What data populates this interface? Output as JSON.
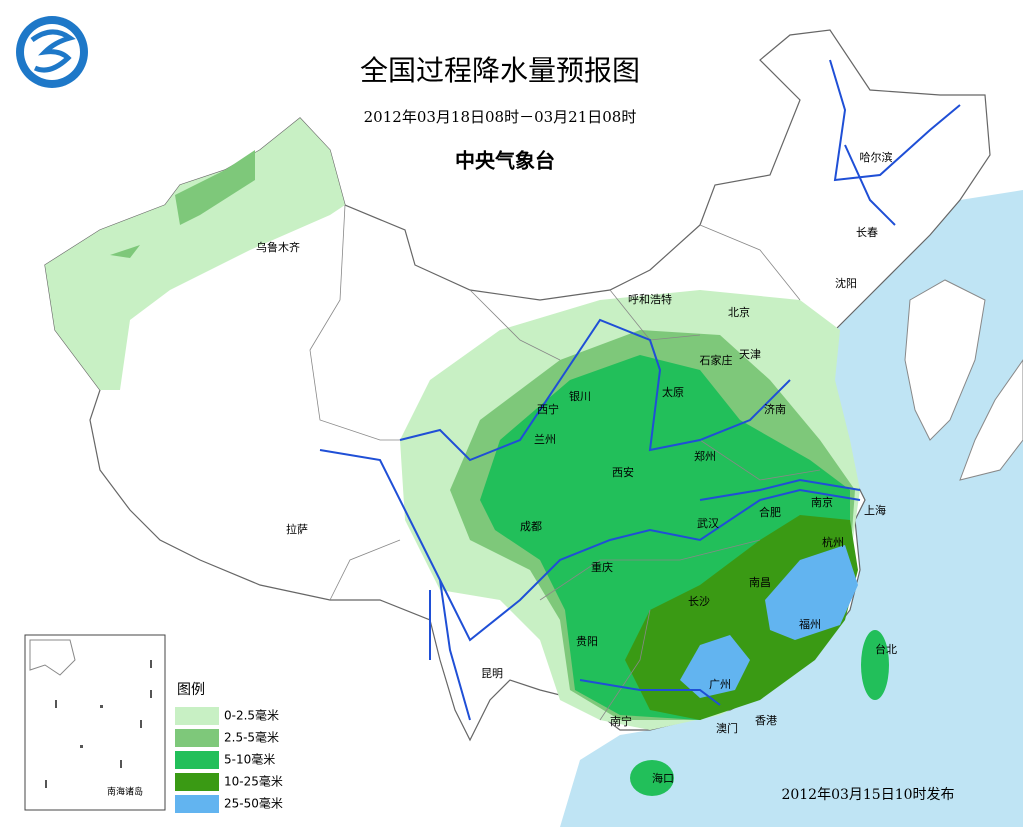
{
  "header": {
    "title": "全国过程降水量预报图",
    "subtitle": "2012年03月18日08时－03月21日08时",
    "agency": "中央气象台"
  },
  "cities": [
    "乌鲁木齐",
    "哈尔滨",
    "长春",
    "沈阳",
    "呼和浩特",
    "北京",
    "天津",
    "石家庄",
    "太原",
    "济南",
    "西宁",
    "银川",
    "兰州",
    "郑州",
    "西安",
    "南京",
    "上海",
    "合肥",
    "成都",
    "武汉",
    "杭州",
    "重庆",
    "南昌",
    "长沙",
    "福州",
    "拉萨",
    "贵阳",
    "昆明",
    "台北",
    "广州",
    "南宁",
    "澳门",
    "香港",
    "海口"
  ],
  "inset_label": "南海诸岛",
  "legend": {
    "title": "图例",
    "items": [
      {
        "label": "0-2.5毫米",
        "color": "#c8f0c4"
      },
      {
        "label": "2.5-5毫米",
        "color": "#7ec87a"
      },
      {
        "label": "5-10毫米",
        "color": "#22bf5a"
      },
      {
        "label": "10-25毫米",
        "color": "#3a9a14"
      },
      {
        "label": "25-50毫米",
        "color": "#62b4f0"
      }
    ]
  },
  "issued": "2012年03月15日10时发布"
}
